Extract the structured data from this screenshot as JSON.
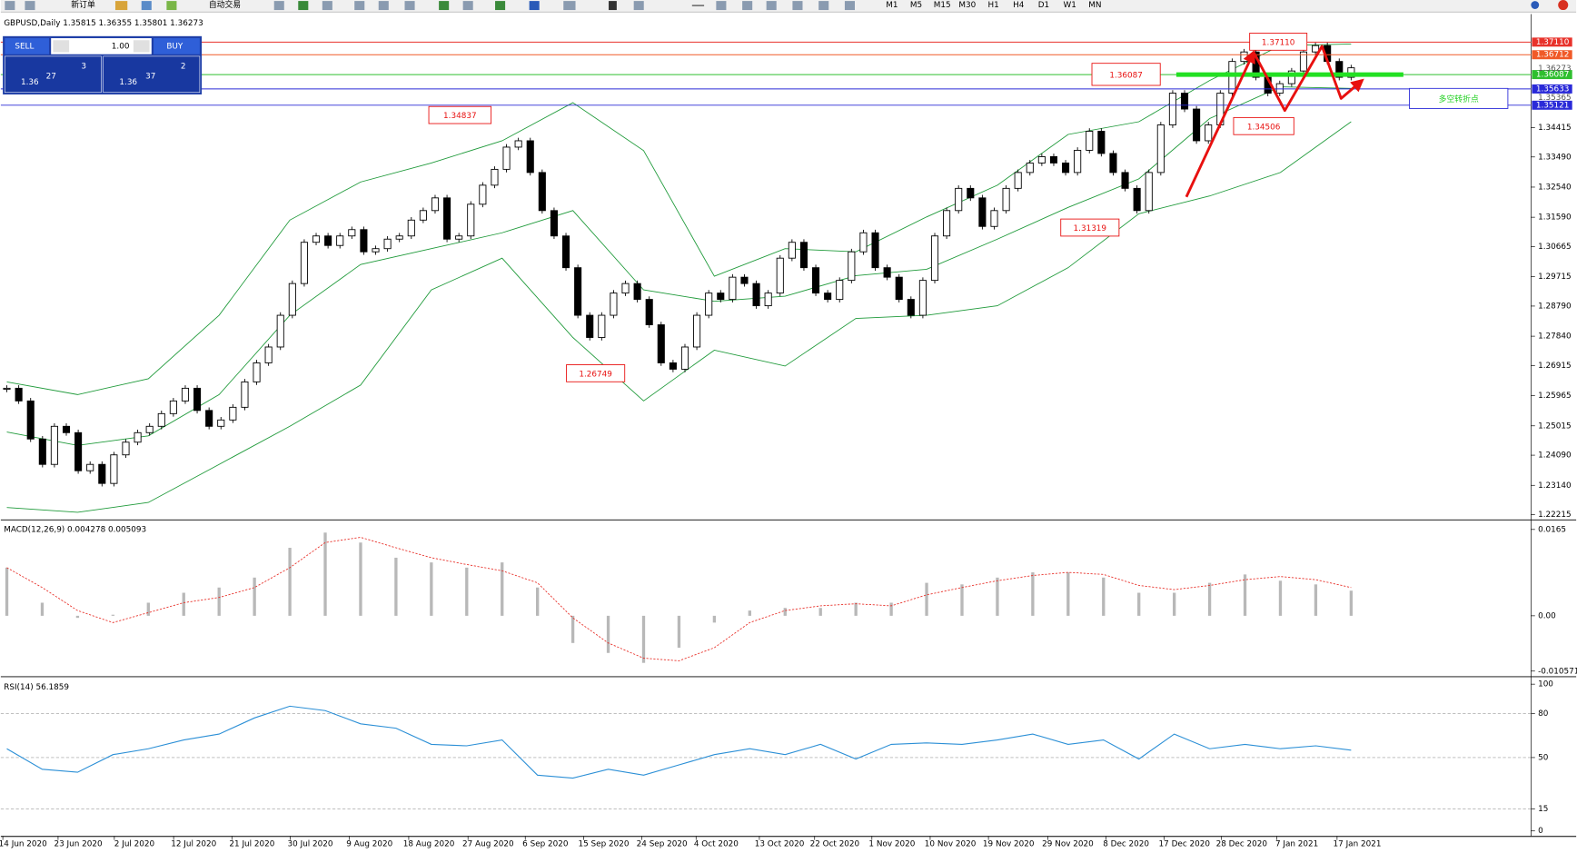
{
  "toolbar": {
    "new_order": "新订单",
    "auto_trading": "自动交易",
    "timeframes": [
      "M1",
      "M5",
      "M15",
      "M30",
      "H1",
      "H4",
      "D1",
      "W1",
      "MN"
    ]
  },
  "trade_panel": {
    "sell": "SELL",
    "buy": "BUY",
    "lot": "1.00",
    "sell_quote": {
      "prefix": "1.36",
      "pips": "27",
      "fraction": "3"
    },
    "buy_quote": {
      "prefix": "1.36",
      "pips": "37",
      "fraction": "2"
    }
  },
  "price_chart": {
    "header": "GBPUSD,Daily  1.35815 1.36355 1.35801 1.36273",
    "ylim": [
      1.22065,
      1.37867
    ],
    "yticks": [
      {
        "value": 1.3441,
        "label": "1.34415"
      },
      {
        "value": 1.3349,
        "label": "1.33490"
      },
      {
        "value": 1.3254,
        "label": "1.32540"
      },
      {
        "value": 1.3159,
        "label": "1.31590"
      },
      1.30665,
      1.29715,
      {
        "value": 1.2879,
        "label": "1.28790"
      },
      {
        "value": 1.2784,
        "label": "1.27840"
      },
      1.26915,
      1.25965,
      1.25015,
      {
        "value": 1.2409,
        "label": "1.24090"
      },
      {
        "value": 1.2314,
        "label": "1.23140"
      },
      1.22215
    ],
    "levels": [
      {
        "value": 1.3711,
        "label": "1.37110",
        "color": "#e8322b"
      },
      {
        "value": 1.36712,
        "label": "1.36712",
        "color": "#f05a28"
      },
      {
        "value": 1.36087,
        "label": "1.36087",
        "color": "#2fbf2f"
      },
      {
        "value": 1.35633,
        "label": "1.35633",
        "color": "#2a2ad8"
      },
      {
        "value": 1.35121,
        "label": "1.35121",
        "color": "#2a2ad8"
      }
    ],
    "axis_extra": [
      1.36273,
      1.35365
    ],
    "closes": [
      1.262,
      1.258,
      1.246,
      1.238,
      1.25,
      1.248,
      1.236,
      1.238,
      1.232,
      1.241,
      1.245,
      1.248,
      1.25,
      1.254,
      1.258,
      1.262,
      1.255,
      1.25,
      1.252,
      1.256,
      1.264,
      1.27,
      1.275,
      1.285,
      1.295,
      1.308,
      1.31,
      1.307,
      1.31,
      1.312,
      1.305,
      1.306,
      1.309,
      1.31,
      1.315,
      1.318,
      1.322,
      1.309,
      1.31,
      1.32,
      1.326,
      1.331,
      1.338,
      1.34,
      1.33,
      1.318,
      1.31,
      1.3,
      1.285,
      1.278,
      1.285,
      1.292,
      1.295,
      1.29,
      1.282,
      1.27,
      1.268,
      1.275,
      1.285,
      1.292,
      1.29,
      1.297,
      1.295,
      1.288,
      1.292,
      1.303,
      1.308,
      1.3,
      1.292,
      1.29,
      1.296,
      1.305,
      1.311,
      1.3,
      1.297,
      1.29,
      1.285,
      1.296,
      1.31,
      1.318,
      1.325,
      1.322,
      1.313,
      1.318,
      1.325,
      1.33,
      1.333,
      1.335,
      1.333,
      1.33,
      1.337,
      1.343,
      1.336,
      1.33,
      1.325,
      1.318,
      1.33,
      1.345,
      1.355,
      1.35,
      1.34,
      1.345,
      1.355,
      1.365,
      1.368,
      1.36,
      1.355,
      1.358,
      1.362,
      1.368,
      1.37,
      1.365,
      1.36,
      1.363
    ],
    "bands": {
      "color": "#1f9a3a",
      "upper": [
        1.264,
        1.26,
        1.265,
        1.285,
        1.315,
        1.327,
        1.333,
        1.34,
        1.352,
        1.3369,
        1.2973,
        1.306,
        1.305,
        1.316,
        1.326,
        1.342,
        1.346,
        1.359,
        1.37,
        1.3705
      ],
      "middle": [
        1.2482,
        1.244,
        1.247,
        1.26,
        1.285,
        1.301,
        1.306,
        1.311,
        1.318,
        1.293,
        1.2894,
        1.291,
        1.2975,
        1.2995,
        1.309,
        1.319,
        1.328,
        1.347,
        1.357,
        1.3565
      ],
      "lower": [
        1.2244,
        1.2229,
        1.226,
        1.238,
        1.25,
        1.263,
        1.293,
        1.303,
        1.278,
        1.258,
        1.274,
        1.269,
        1.284,
        1.285,
        1.288,
        1.3,
        1.317,
        1.3226,
        1.33,
        1.346
      ]
    },
    "annotations": [
      "1.37110",
      "1.36087",
      "1.34837",
      "1.34506",
      "1.31319",
      "1.26749"
    ],
    "note": "多空转折点",
    "dates": [
      "14 Jun 2020",
      "23 Jun 2020",
      "2 Jul 2020",
      "12 Jul 2020",
      "21 Jul 2020",
      "30 Jul 2020",
      "9 Aug 2020",
      "18 Aug 2020",
      "27 Aug 2020",
      "6 Sep 2020",
      "15 Sep 2020",
      "24 Sep 2020",
      "4 Oct 2020",
      "13 Oct 2020",
      "22 Oct 2020",
      "1 Nov 2020",
      "10 Nov 2020",
      "19 Nov 2020",
      "29 Nov 2020",
      "8 Dec 2020",
      "17 Dec 2020",
      "28 Dec 2020",
      "7 Jan 2021",
      "17 Jan 2021"
    ]
  },
  "macd": {
    "header": "MACD(12,26,9) 0.004278 0.005093",
    "ylim": [
      -0.01135,
      0.01784
    ],
    "yticks": [
      0.0165,
      {
        "value": 0,
        "label": "0.00"
      },
      -0.010571
    ],
    "histogram_color": "#b8b8b8",
    "signal_color": "#e8322b",
    "histogram": [
      0.0092,
      0.0025,
      -0.0004,
      0.0002,
      0.0025,
      0.0044,
      0.0054,
      0.0073,
      0.013,
      0.0159,
      0.014,
      0.0111,
      0.0102,
      0.0092,
      0.0102,
      0.0054,
      -0.0052,
      -0.0071,
      -0.009,
      -0.0061,
      -0.0013,
      0.001,
      0.0015,
      0.0015,
      0.0025,
      0.0025,
      0.0063,
      0.006,
      0.0073,
      0.0083,
      0.0083,
      0.0073,
      0.0044,
      0.0044,
      0.0063,
      0.0079,
      0.0067,
      0.006,
      0.0048
    ],
    "signal": [
      0.0092,
      0.0054,
      0.001,
      -0.0013,
      0.0006,
      0.0025,
      0.0035,
      0.0054,
      0.0092,
      0.014,
      0.015,
      0.013,
      0.0111,
      0.0098,
      0.0086,
      0.0063,
      -0.0004,
      -0.0052,
      -0.0081,
      -0.0086,
      -0.0061,
      -0.0013,
      0.001,
      0.0019,
      0.0023,
      0.0019,
      0.004,
      0.0054,
      0.0067,
      0.0077,
      0.0083,
      0.0079,
      0.0058,
      0.005,
      0.0058,
      0.0069,
      0.0075,
      0.0069,
      0.0054
    ]
  },
  "rsi": {
    "header": "RSI(14) 56.1859",
    "ylim": [
      -3.4,
      103.4
    ],
    "yticks": [
      100,
      80,
      50,
      15,
      0
    ],
    "levels": [
      80,
      50,
      15
    ],
    "color": "#2b8fd6",
    "values": [
      56,
      42,
      40,
      52,
      56,
      62,
      66,
      77,
      85,
      82,
      73,
      70,
      59,
      58,
      62,
      38,
      36,
      42,
      38,
      45,
      52,
      56,
      52,
      59,
      49,
      59,
      60,
      59,
      62,
      66,
      59,
      62,
      49,
      66,
      56,
      59,
      56,
      58,
      55
    ]
  }
}
